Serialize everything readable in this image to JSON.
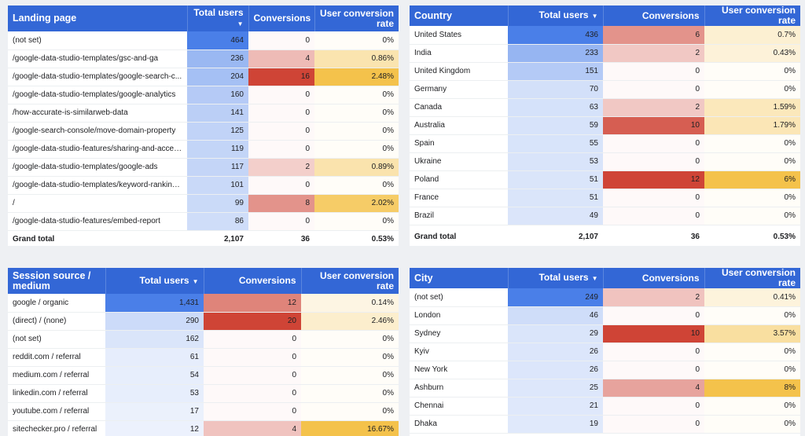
{
  "tables": [
    {
      "id": "landing",
      "headers": [
        "Landing page",
        "Total users",
        "Conversions",
        "User conversion rate"
      ],
      "sort_icon": "arrow-down-icon",
      "sort_col": 1,
      "maxes": [
        464,
        16,
        2.48
      ],
      "rows": [
        [
          "(not set)",
          "464",
          "0",
          "0%"
        ],
        [
          "/google-data-studio-templates/gsc-and-ga",
          "236",
          "4",
          "0.86%"
        ],
        [
          "/google-data-studio-templates/google-search-c...",
          "204",
          "16",
          "2.48%"
        ],
        [
          "/google-data-studio-templates/google-analytics",
          "160",
          "0",
          "0%"
        ],
        [
          "/how-accurate-is-similarweb-data",
          "141",
          "0",
          "0%"
        ],
        [
          "/google-search-console/move-domain-property",
          "125",
          "0",
          "0%"
        ],
        [
          "/google-data-studio-features/sharing-and-acces...",
          "119",
          "0",
          "0%"
        ],
        [
          "/google-data-studio-templates/google-ads",
          "117",
          "2",
          "0.89%"
        ],
        [
          "/google-data-studio-templates/keyword-ranking-...",
          "101",
          "0",
          "0%"
        ],
        [
          "/",
          "99",
          "8",
          "2.02%"
        ],
        [
          "/google-data-studio-features/embed-report",
          "86",
          "0",
          "0%"
        ]
      ],
      "grand": [
        "Grand total",
        "2,107",
        "36",
        "0.53%"
      ]
    },
    {
      "id": "country",
      "headers": [
        "Country",
        "Total users",
        "Conversions",
        "User conversion rate"
      ],
      "sort_icon": "arrow-down-icon",
      "sort_col": 1,
      "maxes": [
        436,
        12,
        6
      ],
      "rows": [
        [
          "United States",
          "436",
          "6",
          "0.7%"
        ],
        [
          "India",
          "233",
          "2",
          "0.43%"
        ],
        [
          "United Kingdom",
          "151",
          "0",
          "0%"
        ],
        [
          "Germany",
          "70",
          "0",
          "0%"
        ],
        [
          "Canada",
          "63",
          "2",
          "1.59%"
        ],
        [
          "Australia",
          "59",
          "10",
          "1.79%"
        ],
        [
          "Spain",
          "55",
          "0",
          "0%"
        ],
        [
          "Ukraine",
          "53",
          "0",
          "0%"
        ],
        [
          "Poland",
          "51",
          "12",
          "6%"
        ],
        [
          "France",
          "51",
          "0",
          "0%"
        ],
        [
          "Brazil",
          "49",
          "0",
          "0%"
        ]
      ],
      "grand": [
        "Grand total",
        "2,107",
        "36",
        "0.53%"
      ]
    },
    {
      "id": "source",
      "headers": [
        "Session source / medium",
        "Total users",
        "Conversions",
        "User conversion rate"
      ],
      "sort_icon": "arrow-down-icon",
      "sort_col": 1,
      "maxes": [
        1431,
        20,
        16.67
      ],
      "rows": [
        [
          "google / organic",
          "1,431",
          "12",
          "0.14%"
        ],
        [
          "(direct) / (none)",
          "290",
          "20",
          "2.46%"
        ],
        [
          "(not set)",
          "162",
          "0",
          "0%"
        ],
        [
          "reddit.com / referral",
          "61",
          "0",
          "0%"
        ],
        [
          "medium.com / referral",
          "54",
          "0",
          "0%"
        ],
        [
          "linkedin.com / referral",
          "53",
          "0",
          "0%"
        ],
        [
          "youtube.com / referral",
          "17",
          "0",
          "0%"
        ],
        [
          "sitechecker.pro / referral",
          "12",
          "4",
          "16.67%"
        ]
      ],
      "grand": null
    },
    {
      "id": "city",
      "headers": [
        "City",
        "Total users",
        "Conversions",
        "User conversion rate"
      ],
      "sort_icon": "arrow-down-icon",
      "sort_col": 1,
      "maxes": [
        249,
        10,
        8
      ],
      "rows": [
        [
          "(not set)",
          "249",
          "2",
          "0.41%"
        ],
        [
          "London",
          "46",
          "0",
          "0%"
        ],
        [
          "Sydney",
          "29",
          "10",
          "3.57%"
        ],
        [
          "Kyiv",
          "26",
          "0",
          "0%"
        ],
        [
          "New York",
          "26",
          "0",
          "0%"
        ],
        [
          "Ashburn",
          "25",
          "4",
          "8%"
        ],
        [
          "Chennai",
          "21",
          "0",
          "0%"
        ],
        [
          "Dhaka",
          "19",
          "0",
          "0%"
        ]
      ],
      "grand": null
    }
  ],
  "colors": {
    "users_heat": "#4a7fe8",
    "conv_heat": "#cf4436",
    "rate_heat": "#f4c24b",
    "header_bg": "#3367d6"
  }
}
